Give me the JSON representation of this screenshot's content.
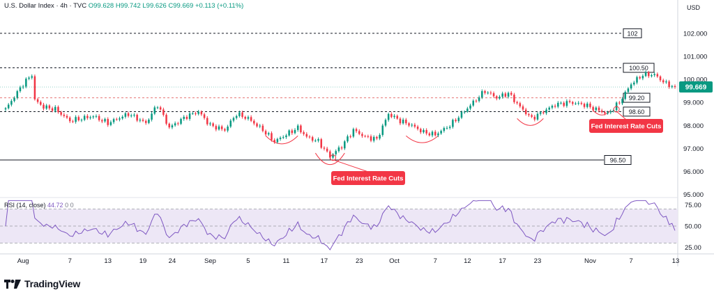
{
  "header": {
    "symbol": "U.S. Dollar Index · 4h · TVC",
    "open": "O99.628",
    "high": "H99.742",
    "low": "L99.626",
    "close": "C99.669",
    "change": "+0.113 (+0.11%)"
  },
  "currency_label": "USD",
  "brand": "TradingView",
  "colors": {
    "up": "#089981",
    "down": "#f23645",
    "rsi": "#7e57c2",
    "rsi_band": "#ede7f6",
    "callout": "#f23645",
    "price_tag": "#089981"
  },
  "chart_data": [
    {
      "type": "candlestick",
      "yaxis": {
        "ticks": [
          "102.000",
          "101.000",
          "100.000",
          "99.000",
          "98.000",
          "97.000",
          "96.000",
          "95.000"
        ],
        "ylim": [
          94.9,
          102.9
        ]
      },
      "xaxis": {
        "ticks": [
          "Aug",
          "7",
          "13",
          "19",
          "24",
          "Sep",
          "5",
          "11",
          "17",
          "23",
          "Oct",
          "7",
          "12",
          "17",
          "23",
          "Nov",
          "7",
          "13"
        ]
      },
      "last_price": "99.669",
      "levels": [
        {
          "label": "102",
          "value": 102.0
        },
        {
          "label": "100.50",
          "value": 100.5
        },
        {
          "label": "99.20",
          "value": 99.2
        },
        {
          "label": "98.60",
          "value": 98.6
        },
        {
          "label": "96.50",
          "value": 96.5
        }
      ],
      "annotations": [
        {
          "text": "Fed Interest Rate Cuts",
          "x_index": 112,
          "y": 96.6
        },
        {
          "text": "Fed Interest Rate Cuts",
          "x_index": 209,
          "y": 98.7
        }
      ],
      "close_anchors": [
        [
          0,
          98.7
        ],
        [
          6,
          99.8
        ],
        [
          9,
          100.2
        ],
        [
          10,
          99.1
        ],
        [
          13,
          98.8
        ],
        [
          17,
          98.7
        ],
        [
          22,
          98.2
        ],
        [
          30,
          98.4
        ],
        [
          35,
          98.1
        ],
        [
          42,
          98.5
        ],
        [
          48,
          98.1
        ],
        [
          52,
          98.9
        ],
        [
          56,
          97.9
        ],
        [
          62,
          98.4
        ],
        [
          66,
          98.6
        ],
        [
          70,
          98.0
        ],
        [
          75,
          97.8
        ],
        [
          79,
          98.5
        ],
        [
          83,
          98.3
        ],
        [
          88,
          97.8
        ],
        [
          92,
          97.3
        ],
        [
          96,
          97.6
        ],
        [
          100,
          97.9
        ],
        [
          103,
          97.5
        ],
        [
          107,
          97.3
        ],
        [
          111,
          96.65
        ],
        [
          115,
          97.1
        ],
        [
          119,
          97.8
        ],
        [
          123,
          97.5
        ],
        [
          127,
          97.4
        ],
        [
          131,
          98.5
        ],
        [
          135,
          98.2
        ],
        [
          139,
          98.0
        ],
        [
          143,
          97.7
        ],
        [
          147,
          97.6
        ],
        [
          152,
          98.0
        ],
        [
          156,
          98.5
        ],
        [
          160,
          99.0
        ],
        [
          164,
          99.5
        ],
        [
          168,
          99.2
        ],
        [
          172,
          99.4
        ],
        [
          176,
          98.8
        ],
        [
          180,
          98.3
        ],
        [
          184,
          98.6
        ],
        [
          188,
          98.9
        ],
        [
          193,
          99.0
        ],
        [
          198,
          98.9
        ],
        [
          202,
          98.7
        ],
        [
          206,
          98.5
        ],
        [
          210,
          99.0
        ],
        [
          214,
          99.8
        ],
        [
          218,
          100.2
        ],
        [
          222,
          100.2
        ],
        [
          226,
          99.8
        ],
        [
          229,
          99.67
        ]
      ]
    },
    {
      "type": "line",
      "series": [
        {
          "name": "RSI (14, close)",
          "last": "44.72"
        }
      ],
      "legend_values": [
        "0",
        "0"
      ],
      "yaxis": {
        "ticks": [
          "75.00",
          "50.00",
          "25.00"
        ],
        "ylim": [
          18,
          82
        ]
      },
      "bands": [
        30,
        70
      ]
    }
  ]
}
